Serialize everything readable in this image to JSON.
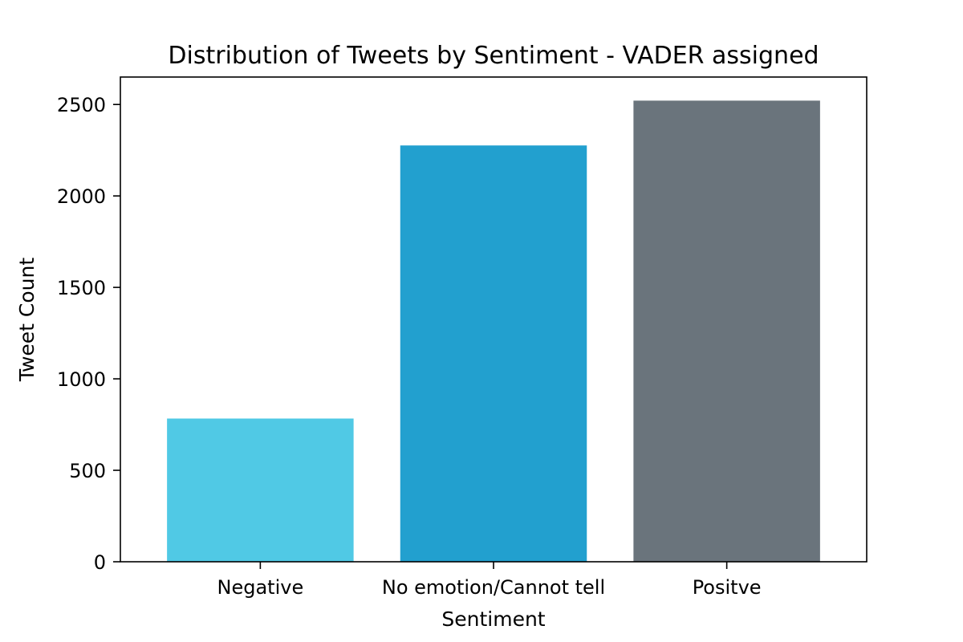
{
  "chart_data": {
    "type": "bar",
    "title": "Distribution of Tweets by Sentiment - VADER assigned",
    "xlabel": "Sentiment",
    "ylabel": "Tweet Count",
    "categories": [
      "Negative",
      "No emotion/Cannot tell",
      "Positve"
    ],
    "values": [
      783,
      2276,
      2521
    ],
    "colors": [
      "#50c9e5",
      "#22a0cf",
      "#6a747c"
    ],
    "ylim": [
      0,
      2650
    ],
    "yticks": [
      0,
      500,
      1000,
      1500,
      2000,
      2500
    ],
    "grid": false,
    "legend": false
  }
}
